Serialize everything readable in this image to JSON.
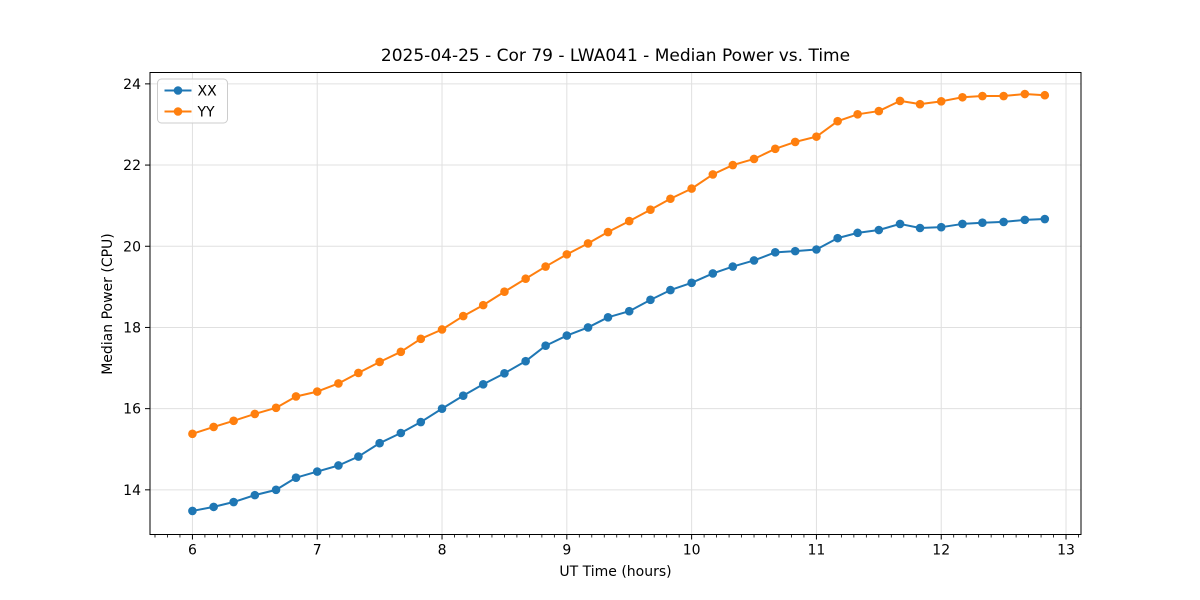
{
  "figure": {
    "title": "2025-04-25 - Cor 79 - LWA041 - Median Power vs. Time"
  },
  "chart_data": {
    "type": "line",
    "title": "2025-04-25 - Cor 79 - LWA041 - Median Power vs. Time",
    "xlabel": "UT Time (hours)",
    "ylabel": "Median Power (CPU)",
    "xlim": [
      5.66,
      13.12
    ],
    "ylim": [
      12.9,
      24.28
    ],
    "x_ticks": [
      6,
      7,
      8,
      9,
      10,
      11,
      12,
      13
    ],
    "y_ticks": [
      14,
      16,
      18,
      20,
      22,
      24
    ],
    "x_minor_step": 0.1,
    "grid": true,
    "grid_color": "#e0e0e0",
    "axis_color": "#000000",
    "legend_position": "upper-left",
    "marker": "circle",
    "x": [
      6.0,
      6.17,
      6.33,
      6.5,
      6.67,
      6.83,
      7.0,
      7.17,
      7.33,
      7.5,
      7.67,
      7.83,
      8.0,
      8.17,
      8.33,
      8.5,
      8.67,
      8.83,
      9.0,
      9.17,
      9.33,
      9.5,
      9.67,
      9.83,
      10.0,
      10.17,
      10.33,
      10.5,
      10.67,
      10.83,
      11.0,
      11.17,
      11.33,
      11.5,
      11.67,
      11.83,
      12.0,
      12.17,
      12.33,
      12.5,
      12.67,
      12.83
    ],
    "series": [
      {
        "name": "XX",
        "color": "#1f77b4",
        "values": [
          13.48,
          13.58,
          13.7,
          13.87,
          14.0,
          14.3,
          14.45,
          14.6,
          14.82,
          15.15,
          15.4,
          15.67,
          16.0,
          16.32,
          16.6,
          16.87,
          17.17,
          17.55,
          17.8,
          18.0,
          18.25,
          18.4,
          18.68,
          18.92,
          19.1,
          19.33,
          19.5,
          19.65,
          19.85,
          19.88,
          19.92,
          20.2,
          20.33,
          20.4,
          20.55,
          20.45,
          20.47,
          20.55,
          20.58,
          20.6,
          20.65,
          20.67
        ]
      },
      {
        "name": "YY",
        "color": "#ff7f0e",
        "values": [
          15.38,
          15.55,
          15.7,
          15.87,
          16.02,
          16.3,
          16.42,
          16.62,
          16.88,
          17.15,
          17.4,
          17.72,
          17.95,
          18.28,
          18.55,
          18.88,
          19.2,
          19.5,
          19.8,
          20.07,
          20.35,
          20.62,
          20.9,
          21.17,
          21.42,
          21.77,
          22.0,
          22.15,
          22.4,
          22.57,
          22.7,
          23.08,
          23.25,
          23.33,
          23.58,
          23.5,
          23.57,
          23.67,
          23.7,
          23.7,
          23.75,
          23.72
        ]
      }
    ]
  }
}
